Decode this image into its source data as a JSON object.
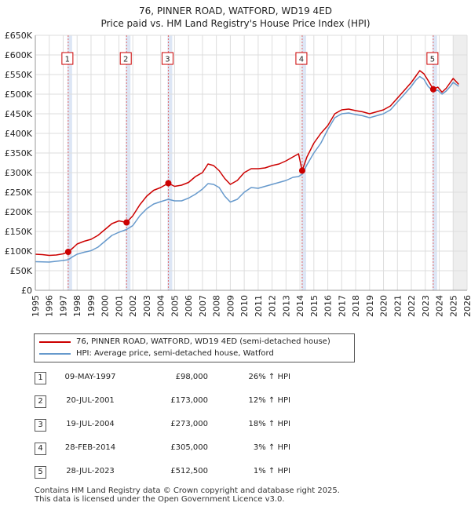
{
  "title_line1": "76, PINNER ROAD, WATFORD, WD19 4ED",
  "title_line2": "Price paid vs. HM Land Registry's House Price Index (HPI)",
  "chart_data": {
    "type": "line",
    "x_ticks": [
      "1995",
      "1996",
      "1997",
      "1998",
      "1999",
      "2000",
      "2001",
      "2002",
      "2003",
      "2004",
      "2005",
      "2006",
      "2007",
      "2008",
      "2009",
      "2010",
      "2011",
      "2012",
      "2013",
      "2014",
      "2015",
      "2016",
      "2017",
      "2018",
      "2019",
      "2020",
      "2021",
      "2022",
      "2023",
      "2024",
      "2025",
      "2026"
    ],
    "y_ticks": [
      "£0",
      "£50K",
      "£100K",
      "£150K",
      "£200K",
      "£250K",
      "£300K",
      "£350K",
      "£400K",
      "£450K",
      "£500K",
      "£550K",
      "£600K",
      "£650K"
    ],
    "xlim": [
      1995,
      2026
    ],
    "ylim": [
      0,
      650000
    ],
    "future_from": 2025.0,
    "series": [
      {
        "name": "76, PINNER ROAD, WATFORD, WD19 4ED (semi-detached house)",
        "color": "#cc0000",
        "points": [
          [
            1995.0,
            92000
          ],
          [
            1995.5,
            91000
          ],
          [
            1996.0,
            89000
          ],
          [
            1996.5,
            90000
          ],
          [
            1997.0,
            93000
          ],
          [
            1997.36,
            98000
          ],
          [
            1997.7,
            108000
          ],
          [
            1998.0,
            118000
          ],
          [
            1998.5,
            125000
          ],
          [
            1999.0,
            130000
          ],
          [
            1999.5,
            140000
          ],
          [
            2000.0,
            155000
          ],
          [
            2000.5,
            170000
          ],
          [
            2001.0,
            177000
          ],
          [
            2001.55,
            173000
          ],
          [
            2002.0,
            190000
          ],
          [
            2002.5,
            218000
          ],
          [
            2003.0,
            240000
          ],
          [
            2003.5,
            255000
          ],
          [
            2004.0,
            262000
          ],
          [
            2004.55,
            273000
          ],
          [
            2005.0,
            265000
          ],
          [
            2005.5,
            268000
          ],
          [
            2006.0,
            275000
          ],
          [
            2006.5,
            290000
          ],
          [
            2007.0,
            300000
          ],
          [
            2007.4,
            322000
          ],
          [
            2007.8,
            318000
          ],
          [
            2008.2,
            305000
          ],
          [
            2008.6,
            285000
          ],
          [
            2009.0,
            270000
          ],
          [
            2009.5,
            280000
          ],
          [
            2010.0,
            300000
          ],
          [
            2010.5,
            310000
          ],
          [
            2011.0,
            310000
          ],
          [
            2011.5,
            312000
          ],
          [
            2012.0,
            318000
          ],
          [
            2012.5,
            322000
          ],
          [
            2013.0,
            330000
          ],
          [
            2013.5,
            340000
          ],
          [
            2013.9,
            348000
          ],
          [
            2014.16,
            305000
          ],
          [
            2014.5,
            340000
          ],
          [
            2015.0,
            375000
          ],
          [
            2015.5,
            400000
          ],
          [
            2016.0,
            420000
          ],
          [
            2016.5,
            450000
          ],
          [
            2017.0,
            460000
          ],
          [
            2017.5,
            462000
          ],
          [
            2018.0,
            458000
          ],
          [
            2018.5,
            455000
          ],
          [
            2019.0,
            450000
          ],
          [
            2019.5,
            455000
          ],
          [
            2020.0,
            460000
          ],
          [
            2020.5,
            470000
          ],
          [
            2021.0,
            490000
          ],
          [
            2021.5,
            510000
          ],
          [
            2022.0,
            530000
          ],
          [
            2022.3,
            545000
          ],
          [
            2022.6,
            560000
          ],
          [
            2022.9,
            552000
          ],
          [
            2023.2,
            535000
          ],
          [
            2023.57,
            512500
          ],
          [
            2023.9,
            518000
          ],
          [
            2024.2,
            505000
          ],
          [
            2024.5,
            515000
          ],
          [
            2024.8,
            530000
          ],
          [
            2025.0,
            540000
          ],
          [
            2025.4,
            525000
          ]
        ]
      },
      {
        "name": "HPI: Average price, semi-detached house, Watford",
        "color": "#6699cc",
        "points": [
          [
            1995.0,
            73000
          ],
          [
            1995.5,
            72500
          ],
          [
            1996.0,
            72000
          ],
          [
            1996.5,
            74000
          ],
          [
            1997.0,
            76000
          ],
          [
            1997.36,
            78000
          ],
          [
            1997.7,
            86000
          ],
          [
            1998.0,
            92000
          ],
          [
            1998.5,
            97000
          ],
          [
            1999.0,
            101000
          ],
          [
            1999.5,
            110000
          ],
          [
            2000.0,
            125000
          ],
          [
            2000.5,
            140000
          ],
          [
            2001.0,
            148000
          ],
          [
            2001.55,
            155000
          ],
          [
            2002.0,
            165000
          ],
          [
            2002.5,
            190000
          ],
          [
            2003.0,
            208000
          ],
          [
            2003.5,
            220000
          ],
          [
            2004.0,
            226000
          ],
          [
            2004.55,
            232000
          ],
          [
            2005.0,
            228000
          ],
          [
            2005.5,
            228000
          ],
          [
            2006.0,
            235000
          ],
          [
            2006.5,
            245000
          ],
          [
            2007.0,
            258000
          ],
          [
            2007.4,
            272000
          ],
          [
            2007.8,
            270000
          ],
          [
            2008.2,
            262000
          ],
          [
            2008.6,
            240000
          ],
          [
            2009.0,
            225000
          ],
          [
            2009.5,
            232000
          ],
          [
            2010.0,
            250000
          ],
          [
            2010.5,
            262000
          ],
          [
            2011.0,
            260000
          ],
          [
            2011.5,
            265000
          ],
          [
            2012.0,
            270000
          ],
          [
            2012.5,
            275000
          ],
          [
            2013.0,
            280000
          ],
          [
            2013.5,
            288000
          ],
          [
            2013.9,
            290000
          ],
          [
            2014.16,
            296000
          ],
          [
            2014.5,
            320000
          ],
          [
            2015.0,
            350000
          ],
          [
            2015.5,
            375000
          ],
          [
            2016.0,
            410000
          ],
          [
            2016.5,
            440000
          ],
          [
            2017.0,
            450000
          ],
          [
            2017.5,
            452000
          ],
          [
            2018.0,
            448000
          ],
          [
            2018.5,
            445000
          ],
          [
            2019.0,
            440000
          ],
          [
            2019.5,
            445000
          ],
          [
            2020.0,
            450000
          ],
          [
            2020.5,
            460000
          ],
          [
            2021.0,
            480000
          ],
          [
            2021.5,
            500000
          ],
          [
            2022.0,
            520000
          ],
          [
            2022.3,
            535000
          ],
          [
            2022.6,
            545000
          ],
          [
            2022.9,
            538000
          ],
          [
            2023.2,
            520000
          ],
          [
            2023.57,
            507000
          ],
          [
            2023.9,
            510000
          ],
          [
            2024.2,
            500000
          ],
          [
            2024.5,
            508000
          ],
          [
            2024.8,
            520000
          ],
          [
            2025.0,
            530000
          ],
          [
            2025.4,
            520000
          ]
        ]
      }
    ],
    "sales": [
      {
        "label": "1",
        "x": 1997.36,
        "price": 98000,
        "date": "09-MAY-1997",
        "price_text": "£98,000",
        "hpi_text": "26% ↑ HPI"
      },
      {
        "label": "2",
        "x": 2001.55,
        "price": 173000,
        "date": "20-JUL-2001",
        "price_text": "£173,000",
        "hpi_text": "12% ↑ HPI"
      },
      {
        "label": "3",
        "x": 2004.55,
        "price": 273000,
        "date": "19-JUL-2004",
        "price_text": "£273,000",
        "hpi_text": "18% ↑ HPI"
      },
      {
        "label": "4",
        "x": 2014.16,
        "price": 305000,
        "date": "28-FEB-2014",
        "price_text": "£305,000",
        "hpi_text": "3% ↑ HPI"
      },
      {
        "label": "5",
        "x": 2023.57,
        "price": 512500,
        "date": "28-JUL-2023",
        "price_text": "£512,500",
        "hpi_text": "1% ↑ HPI"
      }
    ]
  },
  "legend": {
    "property_label": "76, PINNER ROAD, WATFORD, WD19 4ED (semi-detached house)",
    "hpi_label": "HPI: Average price, semi-detached house, Watford",
    "property_color": "#cc0000",
    "hpi_color": "#6699cc"
  },
  "footer": {
    "line1": "Contains HM Land Registry data © Crown copyright and database right 2025.",
    "line2": "This data is licensed under the Open Government Licence v3.0."
  }
}
